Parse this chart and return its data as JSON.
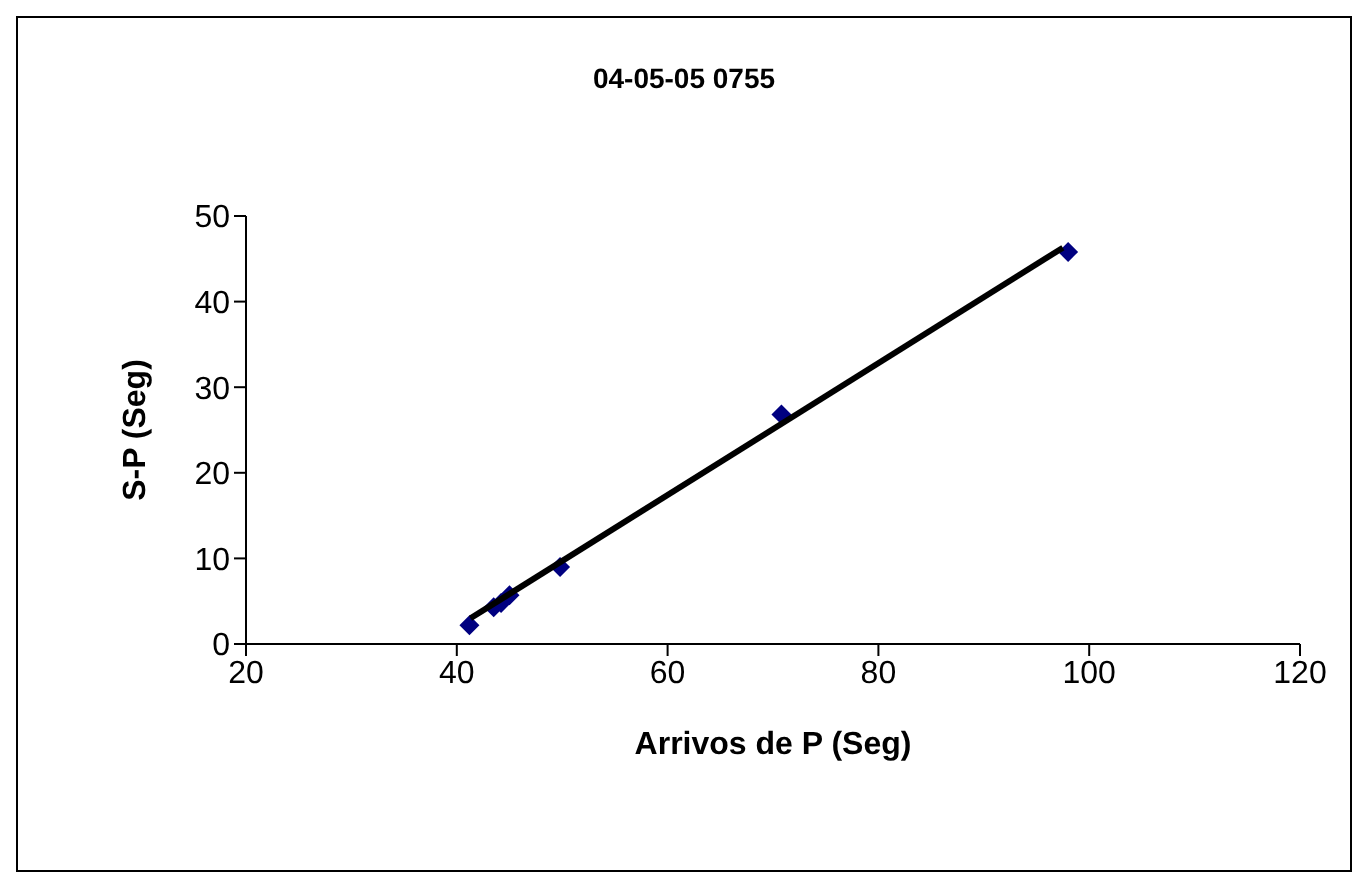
{
  "chart_data": {
    "type": "scatter",
    "title": "04-05-05 0755",
    "xlabel": "Arrivos de P (Seg)",
    "ylabel": "S-P (Seg)",
    "xlim": [
      20,
      120
    ],
    "xticks": [
      20,
      40,
      60,
      80,
      100,
      120
    ],
    "ylim": [
      0,
      50
    ],
    "yticks": [
      0,
      10,
      20,
      30,
      40,
      50
    ],
    "grid": false,
    "legend": false,
    "series": [
      {
        "type": "scatter",
        "color": "#000080",
        "marker": "diamond",
        "x": [
          41.2,
          43.5,
          44.2,
          45,
          49.8,
          70.8,
          98
        ],
        "values": [
          2.2,
          4.3,
          4.8,
          5.7,
          9,
          26.8,
          45.8
        ]
      },
      {
        "type": "line",
        "color": "#000000",
        "marker": "none",
        "x": [
          41.3,
          97.5
        ],
        "values": [
          3,
          46.3
        ]
      }
    ]
  }
}
